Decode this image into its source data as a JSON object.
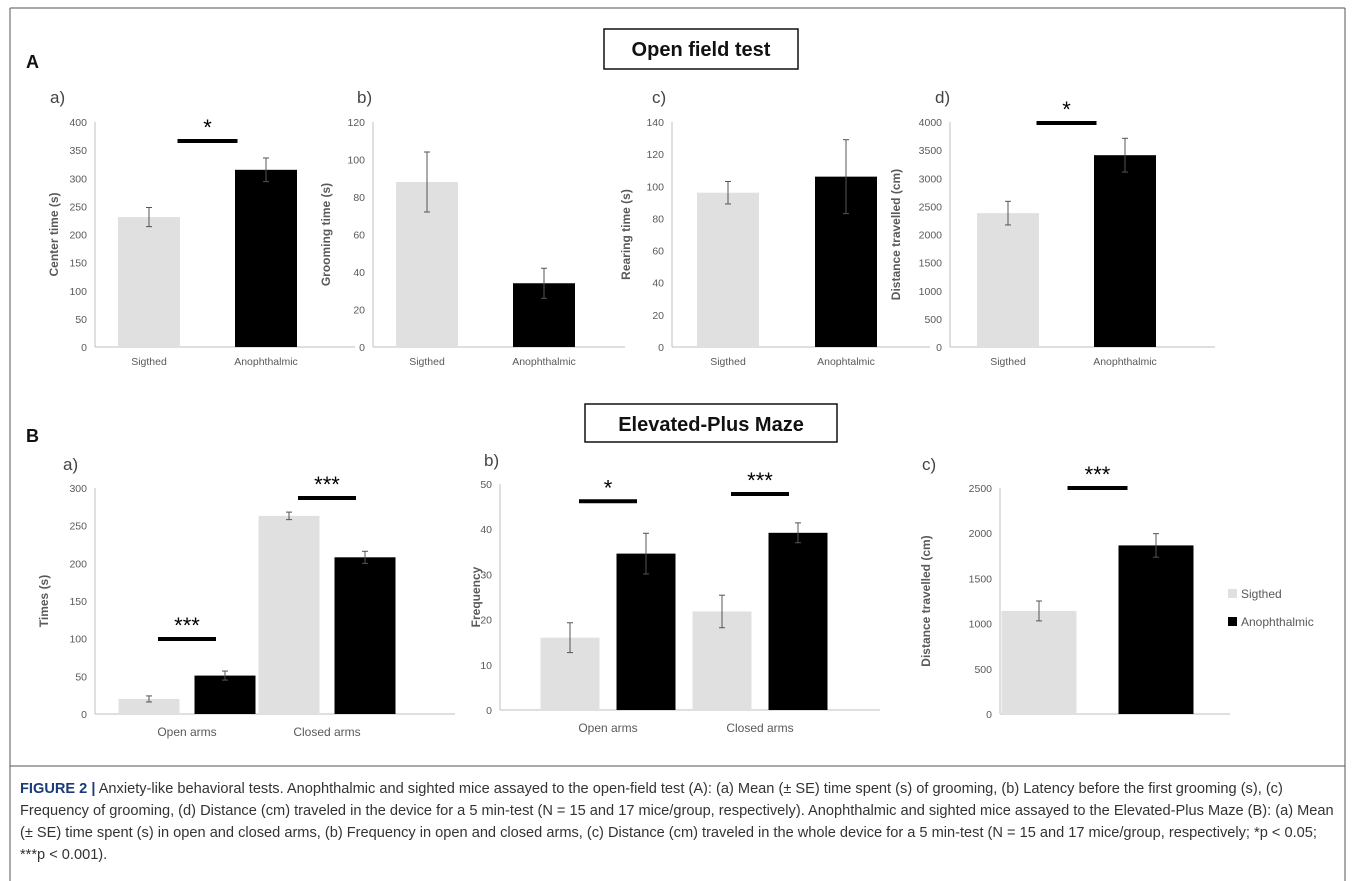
{
  "figure": {
    "section_a": {
      "letter": "A",
      "title": "Open field test"
    },
    "section_b": {
      "letter": "B",
      "title": "Elevated-Plus Maze"
    },
    "legend": {
      "items": [
        {
          "label": "Sigthed",
          "color": "#e0e0e0"
        },
        {
          "label": "Anophthalmic",
          "color": "#000000"
        }
      ]
    },
    "caption": {
      "label": "FIGURE 2 |",
      "text": " Anxiety-like behavioral tests. Anophthalmic and sighted mice assayed to the open-field test (A): (a) Mean (± SE) time spent (s) of grooming, (b) Latency before the first grooming (s), (c) Frequency of grooming, (d) Distance (cm) traveled in the device for a 5 min-test (N = 15 and 17 mice/group, respectively). Anophthalmic and sighted mice assayed to the Elevated-Plus Maze (B): (a) Mean (± SE) time spent (s) in open and closed arms, (b) Frequency in open and closed arms, (c) Distance (cm) traveled in the whole device for a 5 min-test (N = 15 and 17 mice/group, respectively; *p < 0.05; ***p < 0.001)."
    }
  },
  "colors": {
    "sighted": "#e0e0e0",
    "anophthalmic": "#000000",
    "axis": "#bfbfbf",
    "tick_text": "#595959",
    "label_text": "#595959"
  },
  "chart_data": [
    {
      "id": "A-a",
      "panel": "a)",
      "type": "bar",
      "categories": [
        "Sigthed",
        "Anophthalmic"
      ],
      "values": [
        231,
        315
      ],
      "errors": [
        17,
        21
      ],
      "ylabel": "Center time (s)",
      "ylim": [
        0,
        400
      ],
      "ticks": [
        0,
        50,
        100,
        150,
        200,
        250,
        300,
        350,
        400
      ],
      "significance": [
        {
          "label": "*",
          "type": "between"
        }
      ]
    },
    {
      "id": "A-b",
      "panel": "b)",
      "type": "bar",
      "categories": [
        "Sigthed",
        "Anophthalmic"
      ],
      "values": [
        88,
        34
      ],
      "errors": [
        16,
        8
      ],
      "ylabel": "Grooming time (s)",
      "ylim": [
        0,
        120
      ],
      "ticks": [
        0,
        20,
        40,
        60,
        80,
        100,
        120
      ],
      "significance": []
    },
    {
      "id": "A-c",
      "panel": "c)",
      "type": "bar",
      "categories": [
        "Sigthed",
        "Anophtalmic"
      ],
      "values": [
        96,
        106
      ],
      "errors": [
        7,
        23
      ],
      "ylabel": "Rearing time (s)",
      "ylim": [
        0,
        140
      ],
      "ticks": [
        0,
        20,
        40,
        60,
        80,
        100,
        120,
        140
      ],
      "significance": []
    },
    {
      "id": "A-d",
      "panel": "d)",
      "type": "bar",
      "categories": [
        "Sigthed",
        "Anophthalmic"
      ],
      "values": [
        2380,
        3410
      ],
      "errors": [
        210,
        300
      ],
      "ylabel": "Distance travelled (cm)",
      "ylim": [
        0,
        4000
      ],
      "ticks": [
        0,
        500,
        1000,
        1500,
        2000,
        2500,
        3000,
        3500,
        4000
      ],
      "significance": [
        {
          "label": "*",
          "type": "between"
        }
      ]
    },
    {
      "id": "B-a",
      "panel": "a)",
      "type": "bar",
      "categories": [
        "Open arms",
        "Closed arms"
      ],
      "series": [
        {
          "key": "sighted",
          "values": [
            20,
            263
          ],
          "errors": [
            4,
            5
          ]
        },
        {
          "key": "anophthalmic",
          "values": [
            51,
            208
          ],
          "errors": [
            6,
            8
          ]
        }
      ],
      "ylabel": "Times (s)",
      "ylim": [
        0,
        300
      ],
      "ticks": [
        0,
        50,
        100,
        150,
        200,
        250,
        300
      ],
      "significance": [
        {
          "label": "***",
          "group": 0
        },
        {
          "label": "***",
          "group": 1
        }
      ]
    },
    {
      "id": "B-b",
      "panel": "b)",
      "type": "bar",
      "categories": [
        "Open arms",
        "Closed arms"
      ],
      "series": [
        {
          "key": "sighted",
          "values": [
            16,
            21.8
          ],
          "errors": [
            3.3,
            3.6
          ]
        },
        {
          "key": "anophthalmic",
          "values": [
            34.6,
            39.2
          ],
          "errors": [
            4.5,
            2.2
          ]
        }
      ],
      "ylabel": "Frequency",
      "ylim": [
        0,
        50
      ],
      "ticks": [
        0,
        10,
        20,
        30,
        40,
        50
      ],
      "significance": [
        {
          "label": "*",
          "group": 0
        },
        {
          "label": "***",
          "group": 1
        }
      ]
    },
    {
      "id": "B-c",
      "panel": "c)",
      "type": "bar",
      "categories": [
        "",
        ""
      ],
      "values": [
        1140,
        1865
      ],
      "errors": [
        110,
        130
      ],
      "ylabel": "Distance travelled (cm)",
      "ylim": [
        0,
        2500
      ],
      "ticks": [
        0,
        500,
        1000,
        1500,
        2000,
        2500
      ],
      "significance": [
        {
          "label": "***",
          "type": "between"
        }
      ]
    }
  ]
}
